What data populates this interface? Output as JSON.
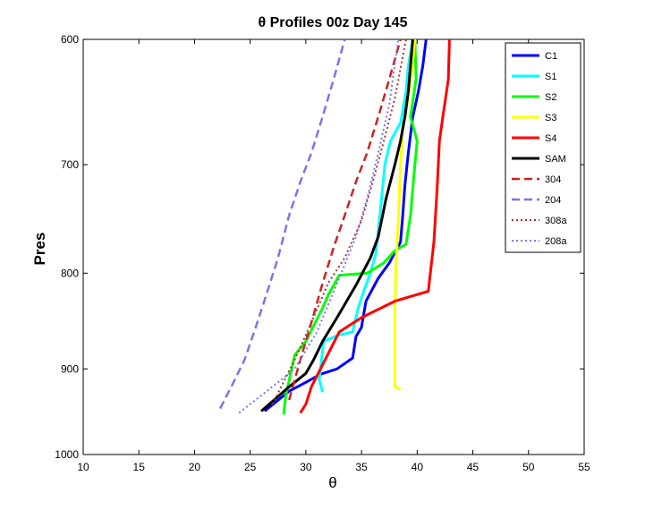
{
  "chart_data": {
    "type": "line",
    "title": "θ Profiles 00z Day 145",
    "xlabel": "θ",
    "ylabel": "Pres",
    "xlim": [
      10,
      55
    ],
    "ylim": [
      600,
      1000
    ],
    "y_scale": "log",
    "y_reversed": true,
    "x_ticks": [
      10,
      15,
      20,
      25,
      30,
      35,
      40,
      45,
      50,
      55
    ],
    "y_ticks": [
      600,
      700,
      800,
      900,
      1000
    ],
    "grid": false,
    "legend_position": "top-right",
    "series": [
      {
        "name": "C1",
        "color": "#0000ff",
        "dash": "solid",
        "width": 3,
        "x": [
          26.3,
          28.5,
          30.0,
          31.3,
          32.8,
          34.2,
          34.5,
          35.0,
          35.4,
          36.5,
          37.5,
          38.5,
          38.7,
          38.9,
          39.2,
          39.6,
          40.1,
          40.5,
          40.8
        ],
        "y": [
          948,
          925,
          915,
          906,
          900,
          888,
          865,
          855,
          828,
          805,
          790,
          770,
          745,
          718,
          690,
          660,
          640,
          620,
          600
        ]
      },
      {
        "name": "S1",
        "color": "#00ffff",
        "dash": "solid",
        "width": 3,
        "x": [
          31.5,
          31.2,
          31.6,
          33.0,
          34.2,
          34.7,
          35.2,
          35.8,
          36.3,
          36.7,
          37.1,
          37.6,
          38.5,
          39.0,
          39.2,
          39.6
        ],
        "y": [
          926,
          912,
          870,
          863,
          860,
          835,
          818,
          800,
          780,
          740,
          700,
          680,
          665,
          640,
          620,
          600
        ]
      },
      {
        "name": "S2",
        "color": "#00ff00",
        "dash": "solid",
        "width": 3,
        "x": [
          28.0,
          28.2,
          29.0,
          30.0,
          31.5,
          32.0,
          33.0,
          35.5,
          37.0,
          38.0,
          39.0,
          39.4,
          39.7,
          40.0,
          39.4,
          39.9,
          39.8
        ],
        "y": [
          952,
          930,
          885,
          870,
          835,
          822,
          802,
          800,
          790,
          778,
          772,
          745,
          710,
          680,
          660,
          630,
          600
        ]
      },
      {
        "name": "S3",
        "color": "#ffff00",
        "dash": "solid",
        "width": 3,
        "x": [
          38.5,
          38.0,
          38.0,
          38.0,
          38.1,
          38.3,
          38.5,
          38.7,
          39.1,
          39.5,
          39.8
        ],
        "y": [
          923,
          920,
          880,
          840,
          790,
          750,
          700,
          670,
          650,
          625,
          600
        ]
      },
      {
        "name": "S4",
        "color": "#ff0000",
        "dash": "solid",
        "width": 3,
        "x": [
          29.5,
          30.0,
          30.5,
          33.0,
          35.0,
          38.0,
          41.0,
          41.5,
          41.8,
          42.0,
          42.3,
          42.8,
          42.9
        ],
        "y": [
          950,
          940,
          920,
          860,
          845,
          828,
          818,
          770,
          720,
          680,
          660,
          630,
          600
        ]
      },
      {
        "name": "SAM",
        "color": "#000000",
        "dash": "solid",
        "width": 3,
        "x": [
          26.0,
          28.5,
          30.0,
          30.7,
          31.5,
          32.8,
          34.5,
          35.8,
          36.5,
          37.2,
          38.0,
          38.5,
          38.9,
          39.2,
          39.6
        ],
        "y": [
          948,
          920,
          905,
          890,
          870,
          845,
          812,
          785,
          765,
          730,
          700,
          680,
          660,
          640,
          600
        ]
      },
      {
        "name": "304",
        "color": "#cc2222",
        "dash": "dashed",
        "width": 2.5,
        "x": [
          28.5,
          29.5,
          30.5,
          31.5,
          32.5,
          33.5,
          34.5,
          35.5,
          36.5,
          37.5,
          38.5
        ],
        "y": [
          935,
          890,
          850,
          810,
          775,
          745,
          715,
          690,
          660,
          630,
          600
        ]
      },
      {
        "name": "204",
        "color": "#7777ee",
        "dash": "dashed",
        "width": 2.5,
        "x": [
          22.3,
          23.5,
          24.5,
          25.5,
          26.5,
          27.5,
          28.5,
          29.5,
          30.5,
          31.5,
          32.5,
          33.5
        ],
        "y": [
          945,
          915,
          890,
          855,
          820,
          785,
          745,
          715,
          690,
          660,
          630,
          600
        ]
      },
      {
        "name": "308a",
        "color": "#aa3333",
        "dash": "dotted",
        "width": 2,
        "x": [
          27.0,
          29.0,
          30.5,
          32.0,
          33.5,
          35.0,
          36.0,
          37.0,
          38.0,
          39.0
        ],
        "y": [
          940,
          890,
          850,
          810,
          785,
          750,
          715,
          680,
          645,
          600
        ]
      },
      {
        "name": "208a",
        "color": "#7777ee",
        "dash": "dotted",
        "width": 2,
        "x": [
          24.0,
          26.5,
          29.0,
          31.0,
          33.0,
          34.5,
          35.5,
          36.5,
          37.5,
          38.3
        ],
        "y": [
          950,
          925,
          900,
          860,
          805,
          765,
          730,
          690,
          650,
          600
        ]
      }
    ]
  }
}
